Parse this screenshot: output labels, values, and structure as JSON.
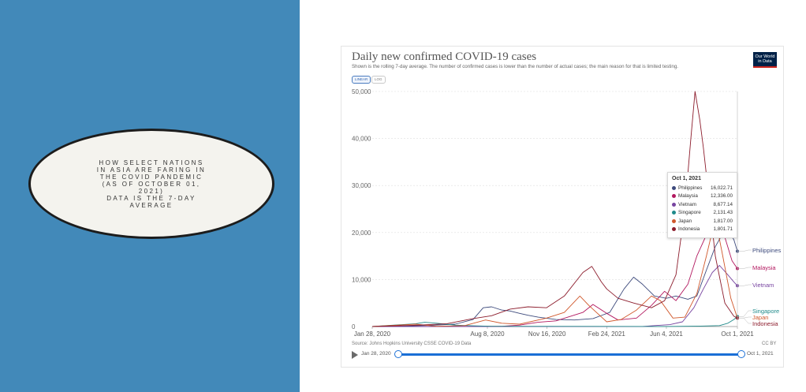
{
  "left_panel": {
    "caption_lines": [
      "HOW SELECT NATIONS",
      "IN ASIA ARE FARING IN",
      "THE COVID PANDEMIC",
      "(AS OF OCTOBER 01,",
      "2021)",
      "DATA IS THE 7-DAY",
      "AVERAGE"
    ],
    "background": "#4289b9"
  },
  "header": {
    "title": "Daily new confirmed COVID-19 cases",
    "subtitle": "Shown is the rolling 7-day average. The number of confirmed cases is lower than the number of actual cases; the main reason for that is limited testing.",
    "logo_line1": "Our World",
    "logo_line2": "in Data",
    "scale_linear": "LINEAR",
    "scale_log": "LOG"
  },
  "footer": {
    "source": "Source: Johns Hopkins University CSSE COVID-19 Data",
    "license": "CC BY"
  },
  "timeline": {
    "start_label": "Jan 28, 2020",
    "end_label": "Oct 1, 2021"
  },
  "tooltip": {
    "date": "Oct 1, 2021",
    "rows": [
      {
        "name": "Philippines",
        "value": "16,022.71"
      },
      {
        "name": "Malaysia",
        "value": "12,336.00"
      },
      {
        "name": "Vietnam",
        "value": "8,677.14"
      },
      {
        "name": "Singapore",
        "value": "2,131.43"
      },
      {
        "name": "Japan",
        "value": "1,817.00"
      },
      {
        "name": "Indonesia",
        "value": "1,801.71"
      }
    ]
  },
  "chart_data": {
    "type": "line",
    "title": "Daily new confirmed COVID-19 cases",
    "subtitle": "Shown is the rolling 7-day average. The number of confirmed cases is lower than the number of actual cases; the main reason for that is limited testing.",
    "x_ticks": [
      "Jan 28, 2020",
      "Aug 8, 2020",
      "Nov 16, 2020",
      "Feb 24, 2021",
      "Jun 4, 2021",
      "Oct 1, 2021"
    ],
    "y_ticks": [
      0,
      10000,
      20000,
      30000,
      40000,
      50000
    ],
    "y_tick_labels": [
      "0",
      "10,000",
      "20,000",
      "30,000",
      "40,000",
      "50,000"
    ],
    "xlim": [
      "2020-01-28",
      "2021-10-01"
    ],
    "ylim": [
      0,
      50000
    ],
    "grid": "horizontal dashed",
    "series": [
      {
        "name": "Philippines",
        "color": "#3d4a7c",
        "points": [
          [
            "2020-01-28",
            0
          ],
          [
            "2020-03-15",
            100
          ],
          [
            "2020-05-01",
            250
          ],
          [
            "2020-06-15",
            500
          ],
          [
            "2020-07-15",
            1500
          ],
          [
            "2020-08-01",
            4000
          ],
          [
            "2020-08-15",
            4200
          ],
          [
            "2020-09-01",
            3500
          ],
          [
            "2020-09-15",
            3300
          ],
          [
            "2020-10-01",
            2800
          ],
          [
            "2020-10-15",
            2400
          ],
          [
            "2020-11-01",
            2000
          ],
          [
            "2020-12-01",
            1500
          ],
          [
            "2021-01-01",
            1400
          ],
          [
            "2021-02-01",
            1700
          ],
          [
            "2021-03-01",
            3000
          ],
          [
            "2021-03-25",
            8000
          ],
          [
            "2021-04-10",
            10500
          ],
          [
            "2021-04-25",
            9000
          ],
          [
            "2021-05-15",
            6500
          ],
          [
            "2021-06-04",
            6000
          ],
          [
            "2021-06-20",
            6500
          ],
          [
            "2021-07-10",
            5800
          ],
          [
            "2021-07-25",
            6500
          ],
          [
            "2021-08-10",
            12000
          ],
          [
            "2021-08-25",
            17000
          ],
          [
            "2021-09-12",
            21000
          ],
          [
            "2021-09-25",
            18500
          ],
          [
            "2021-10-01",
            16022.71
          ]
        ]
      },
      {
        "name": "Malaysia",
        "color": "#b2185f",
        "points": [
          [
            "2020-01-28",
            0
          ],
          [
            "2020-09-01",
            50
          ],
          [
            "2020-10-01",
            300
          ],
          [
            "2020-11-01",
            900
          ],
          [
            "2020-12-01",
            1200
          ],
          [
            "2021-01-15",
            3000
          ],
          [
            "2021-02-01",
            4700
          ],
          [
            "2021-02-24",
            2800
          ],
          [
            "2021-03-15",
            1400
          ],
          [
            "2021-04-15",
            1800
          ],
          [
            "2021-05-10",
            4500
          ],
          [
            "2021-06-01",
            7500
          ],
          [
            "2021-06-20",
            5500
          ],
          [
            "2021-07-10",
            9000
          ],
          [
            "2021-07-25",
            15000
          ],
          [
            "2021-08-10",
            19500
          ],
          [
            "2021-08-25",
            21500
          ],
          [
            "2021-09-10",
            19000
          ],
          [
            "2021-09-22",
            14000
          ],
          [
            "2021-10-01",
            12336
          ]
        ]
      },
      {
        "name": "Vietnam",
        "color": "#7744a0",
        "points": [
          [
            "2020-01-28",
            0
          ],
          [
            "2021-04-25",
            20
          ],
          [
            "2021-05-15",
            200
          ],
          [
            "2021-06-10",
            400
          ],
          [
            "2021-07-01",
            1000
          ],
          [
            "2021-07-20",
            4000
          ],
          [
            "2021-08-05",
            8000
          ],
          [
            "2021-08-20",
            11500
          ],
          [
            "2021-09-01",
            13000
          ],
          [
            "2021-09-15",
            11000
          ],
          [
            "2021-09-25",
            9500
          ],
          [
            "2021-10-01",
            8677.14
          ]
        ]
      },
      {
        "name": "Singapore",
        "color": "#1f8a8a",
        "points": [
          [
            "2020-01-28",
            0
          ],
          [
            "2020-04-10",
            600
          ],
          [
            "2020-04-25",
            900
          ],
          [
            "2020-05-15",
            700
          ],
          [
            "2020-06-15",
            300
          ],
          [
            "2020-07-15",
            150
          ],
          [
            "2020-08-15",
            50
          ],
          [
            "2021-06-01",
            20
          ],
          [
            "2021-08-01",
            100
          ],
          [
            "2021-09-01",
            200
          ],
          [
            "2021-09-15",
            700
          ],
          [
            "2021-09-25",
            1500
          ],
          [
            "2021-10-01",
            2131.43
          ]
        ]
      },
      {
        "name": "Japan",
        "color": "#d0582c",
        "points": [
          [
            "2020-01-28",
            0
          ],
          [
            "2020-04-10",
            500
          ],
          [
            "2020-05-15",
            50
          ],
          [
            "2020-07-01",
            200
          ],
          [
            "2020-08-05",
            1400
          ],
          [
            "2020-09-01",
            700
          ],
          [
            "2020-10-01",
            500
          ],
          [
            "2020-11-15",
            1800
          ],
          [
            "2020-12-15",
            3000
          ],
          [
            "2021-01-10",
            6500
          ],
          [
            "2021-01-25",
            4500
          ],
          [
            "2021-02-24",
            1000
          ],
          [
            "2021-03-20",
            1500
          ],
          [
            "2021-04-15",
            3500
          ],
          [
            "2021-05-10",
            6500
          ],
          [
            "2021-05-25",
            5500
          ],
          [
            "2021-06-15",
            1800
          ],
          [
            "2021-07-05",
            2000
          ],
          [
            "2021-07-25",
            7000
          ],
          [
            "2021-08-10",
            15000
          ],
          [
            "2021-08-25",
            23000
          ],
          [
            "2021-09-05",
            16000
          ],
          [
            "2021-09-20",
            6000
          ],
          [
            "2021-10-01",
            1817
          ]
        ]
      },
      {
        "name": "Indonesia",
        "color": "#8c1c2c",
        "points": [
          [
            "2020-01-28",
            0
          ],
          [
            "2020-04-15",
            300
          ],
          [
            "2020-06-01",
            600
          ],
          [
            "2020-07-15",
            1700
          ],
          [
            "2020-08-15",
            2300
          ],
          [
            "2020-09-15",
            3700
          ],
          [
            "2020-10-15",
            4200
          ],
          [
            "2020-11-15",
            4000
          ],
          [
            "2020-12-15",
            6500
          ],
          [
            "2021-01-15",
            11500
          ],
          [
            "2021-01-30",
            12800
          ],
          [
            "2021-02-15",
            9500
          ],
          [
            "2021-02-24",
            8000
          ],
          [
            "2021-03-15",
            6000
          ],
          [
            "2021-04-10",
            5000
          ],
          [
            "2021-05-10",
            4000
          ],
          [
            "2021-06-01",
            5500
          ],
          [
            "2021-06-20",
            11000
          ],
          [
            "2021-07-05",
            25000
          ],
          [
            "2021-07-15",
            40000
          ],
          [
            "2021-07-22",
            50000
          ],
          [
            "2021-07-30",
            44000
          ],
          [
            "2021-08-05",
            38000
          ],
          [
            "2021-08-12",
            30000
          ],
          [
            "2021-08-25",
            15000
          ],
          [
            "2021-09-10",
            5000
          ],
          [
            "2021-09-25",
            2200
          ],
          [
            "2021-10-01",
            1801.71
          ]
        ]
      }
    ],
    "end_labels": [
      "Philippines",
      "Malaysia",
      "Vietnam",
      "Singapore",
      "Japan",
      "Indonesia"
    ]
  }
}
